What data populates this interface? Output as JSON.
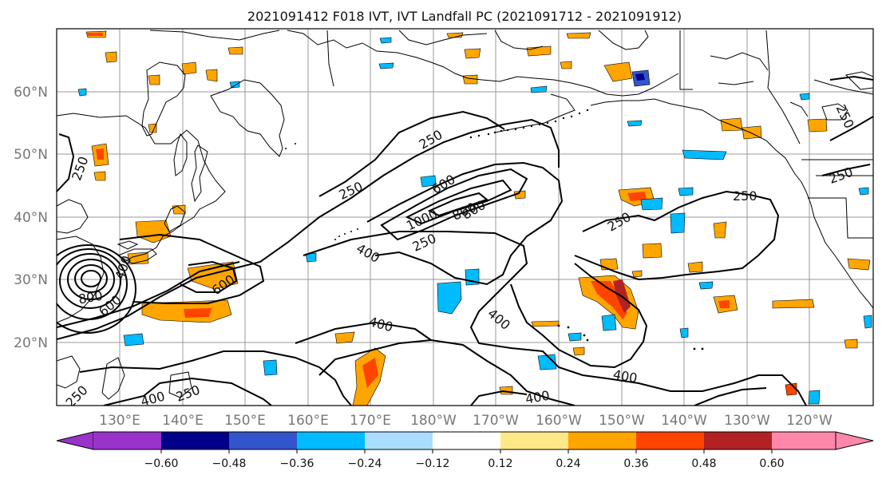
{
  "title": "2021091412 F018 IVT, IVT Landfall PC (2021091712 - 2021091912)",
  "lat_labels": [
    "60°N",
    "50°N",
    "40°N",
    "30°N",
    "20°N"
  ],
  "lon_labels": [
    "130°E",
    "140°E",
    "150°E",
    "160°E",
    "170°E",
    "180°W",
    "170°W",
    "160°W",
    "150°W",
    "140°W",
    "130°W",
    "120°W"
  ],
  "contour_labels": [
    "250",
    "250",
    "250",
    "250",
    "250",
    "250",
    "250",
    "250",
    "600",
    "800",
    "1000",
    "800",
    "400",
    "400",
    "400",
    "400",
    "400",
    "400",
    "600",
    "800",
    "600",
    "250",
    "400",
    "250"
  ],
  "colorbar": {
    "colors": [
      "#9933cc",
      "#000088",
      "#3355cc",
      "#00bbff",
      "#aaddff",
      "#ffffff",
      "#ffe888",
      "#ffa500",
      "#ff4400",
      "#b22222",
      "#ff88aa"
    ],
    "tick_labels": [
      "−0.60",
      "−0.48",
      "−0.36",
      "−0.24",
      "−0.12",
      "0.12",
      "0.24",
      "0.36",
      "0.48",
      "0.60"
    ]
  }
}
